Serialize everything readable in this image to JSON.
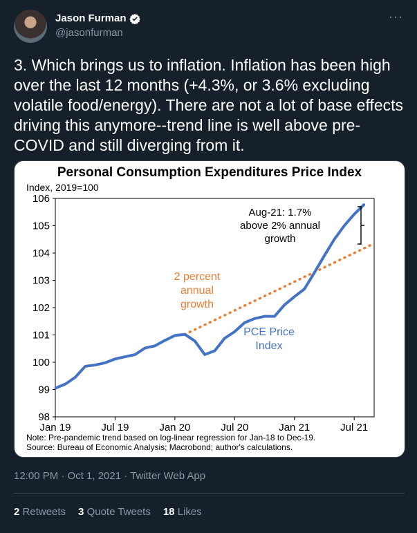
{
  "author": {
    "name": "Jason Furman",
    "handle": "@jasonfurman"
  },
  "more_icon": "···",
  "tweet_text": "3. Which brings us to inflation. Inflation has been high over the last 12 months (+4.3%, or 3.6% excluding volatile food/energy). There are not a lot of base effects driving this anymore--trend line is well above pre-COVID and still diverging from it.",
  "timestamp": "12:00 PM · Oct 1, 2021 · Twitter Web App",
  "stats": {
    "retweets_count": "2",
    "retweets_label": "Retweets",
    "quotes_count": "3",
    "quotes_label": "Quote Tweets",
    "likes_count": "18",
    "likes_label": "Likes"
  },
  "chart_data": {
    "type": "line",
    "title": "Personal Consumption Expenditures Price Index",
    "ylabel": "Index, 2019=100",
    "ylim": [
      98,
      106
    ],
    "y_ticks": [
      "98",
      "99",
      "100",
      "101",
      "102",
      "103",
      "104",
      "105",
      "106"
    ],
    "x_tick_labels": [
      "Jan 19",
      "Jul 19",
      "Jan 20",
      "Jul 20",
      "Jan 21",
      "Jul 21"
    ],
    "months_axis": [
      "2019-01",
      "2021-09"
    ],
    "colors": {
      "pce": "#4472c4",
      "trend": "#ed7d31"
    },
    "series": [
      {
        "name": "PCE Price Index",
        "x": [
          "2019-01",
          "2019-02",
          "2019-03",
          "2019-04",
          "2019-05",
          "2019-06",
          "2019-07",
          "2019-08",
          "2019-09",
          "2019-10",
          "2019-11",
          "2019-12",
          "2020-01",
          "2020-02",
          "2020-03",
          "2020-04",
          "2020-05",
          "2020-06",
          "2020-07",
          "2020-08",
          "2020-09",
          "2020-10",
          "2020-11",
          "2020-12",
          "2021-01",
          "2021-02",
          "2021-03",
          "2021-04",
          "2021-05",
          "2021-06",
          "2021-07",
          "2021-08"
        ],
        "values": [
          99.05,
          99.2,
          99.45,
          99.85,
          99.9,
          99.98,
          100.12,
          100.2,
          100.28,
          100.52,
          100.6,
          100.8,
          100.98,
          101.02,
          100.78,
          100.28,
          100.42,
          100.88,
          101.12,
          101.45,
          101.6,
          101.68,
          101.68,
          102.1,
          102.4,
          102.68,
          103.28,
          103.9,
          104.5,
          105.0,
          105.42,
          105.78
        ]
      },
      {
        "name": "2 percent annual growth",
        "x": [
          "2020-02",
          "2021-09"
        ],
        "values": [
          101.02,
          104.35
        ]
      }
    ],
    "annotations": {
      "aug21": "Aug-21: 1.7% above 2% annual growth",
      "trend_label": "2 percent annual growth",
      "pce_label": "PCE Price Index"
    },
    "notes": [
      "Note: Pre-pandemic trend based on log-linear regression for Jan-18 to Dec-19.",
      "Source: Bureau of Economic Analysis; Macrobond; author's calculations."
    ]
  }
}
